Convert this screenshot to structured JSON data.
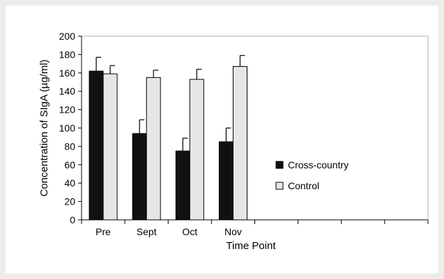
{
  "chart_data": {
    "type": "bar",
    "xlabel": "Time Point",
    "ylabel": "Concentration of SIgA (µg/ml)",
    "ylim": [
      0,
      200
    ],
    "ytick_step": 20,
    "category_slots": 8,
    "categories": [
      "Pre",
      "Sept",
      "Oct",
      "Nov"
    ],
    "series": [
      {
        "name": "Cross-country",
        "color": "#111111",
        "values": [
          162,
          94,
          75,
          85
        ],
        "error": [
          15,
          15,
          14,
          15
        ]
      },
      {
        "name": "Control",
        "color": "#e6e6e6",
        "values": [
          159,
          155,
          153,
          167
        ],
        "error": [
          9,
          8,
          11,
          12
        ]
      }
    ],
    "legend_position": "right",
    "grid": false
  }
}
